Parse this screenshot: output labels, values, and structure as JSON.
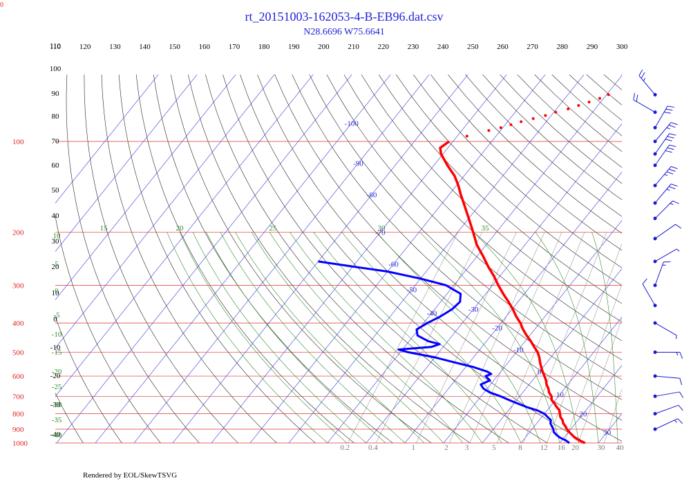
{
  "chart_data": {
    "type": "skew-t log-p diagram",
    "title": "rt_20151003-162053-4-B-EB96.dat.csv",
    "subtitle": "N28.6696 W75.6641",
    "corner_label": "0",
    "footer": "Rendered by EOL/SkewTSVG",
    "pressure_labels": [
      "100",
      "200",
      "300",
      "400",
      "500",
      "600",
      "700",
      "800",
      "900",
      "1000"
    ],
    "pressure_levels": [
      100,
      200,
      300,
      400,
      500,
      600,
      700,
      800,
      900,
      1000
    ],
    "top_axis_labels": [
      "110",
      "120",
      "130",
      "140",
      "150",
      "160",
      "170",
      "180",
      "190",
      "200",
      "210",
      "220",
      "230",
      "240",
      "250",
      "260",
      "270",
      "280",
      "290",
      "300"
    ],
    "isotherm_labels": [
      {
        "p": 87,
        "t": -100
      },
      {
        "p": 118,
        "t": -90
      },
      {
        "p": 150,
        "t": -80
      },
      {
        "p": 200,
        "t": -70
      },
      {
        "p": 255,
        "t": -60
      },
      {
        "p": 310,
        "t": -50
      },
      {
        "p": 370,
        "t": -40
      },
      {
        "p": 360,
        "t": -30
      },
      {
        "p": 415,
        "t": -20
      },
      {
        "p": 490,
        "t": -10
      },
      {
        "p": 580,
        "t": 0
      },
      {
        "p": 690,
        "t": 10
      },
      {
        "p": 800,
        "t": 20
      },
      {
        "p": 920,
        "t": 30
      }
    ],
    "height_labels": [
      {
        "label": "110",
        "y": 70
      },
      {
        "label": "100",
        "y": 103
      },
      {
        "label": "90",
        "y": 139
      },
      {
        "label": "80",
        "y": 172
      },
      {
        "label": "70",
        "y": 208
      },
      {
        "label": "60",
        "y": 243
      },
      {
        "label": "50",
        "y": 279
      },
      {
        "label": "40",
        "y": 316
      },
      {
        "label": "30",
        "y": 353
      },
      {
        "label": "20",
        "y": 390
      },
      {
        "label": "10",
        "y": 428
      },
      {
        "label": "0",
        "y": 466
      },
      {
        "label": "-10",
        "y": 507
      },
      {
        "label": "-20",
        "y": 548
      },
      {
        "label": "-30",
        "y": 590
      },
      {
        "label": "-40",
        "y": 633
      }
    ],
    "moist_adiabat_labels": [
      "15",
      "20",
      "25",
      "30",
      "35"
    ],
    "green_left_labels": [
      "10",
      "5",
      "0",
      "-5",
      "-10",
      "-15",
      "-20",
      "-25",
      "-30",
      "-35",
      "-40"
    ],
    "mixing_ratio_labels": [
      "0.2",
      "0.4",
      "1",
      "2",
      "3",
      "5",
      "8",
      "12",
      "16",
      "20",
      "30",
      "40"
    ],
    "mixing_ratio_values": [
      0.2,
      0.4,
      1,
      2,
      3,
      5,
      8,
      12,
      16,
      20,
      30,
      40
    ],
    "temperature_profile": [
      {
        "p": 1000,
        "t": 26.5
      },
      {
        "p": 980,
        "t": 24.5
      },
      {
        "p": 960,
        "t": 22.8
      },
      {
        "p": 940,
        "t": 21.5
      },
      {
        "p": 920,
        "t": 20.2
      },
      {
        "p": 900,
        "t": 19.0
      },
      {
        "p": 880,
        "t": 18.0
      },
      {
        "p": 860,
        "t": 16.8
      },
      {
        "p": 840,
        "t": 16.0
      },
      {
        "p": 820,
        "t": 14.8
      },
      {
        "p": 800,
        "t": 14.0
      },
      {
        "p": 780,
        "t": 13.2
      },
      {
        "p": 760,
        "t": 11.8
      },
      {
        "p": 740,
        "t": 10.5
      },
      {
        "p": 720,
        "t": 9.0
      },
      {
        "p": 700,
        "t": 8.2
      },
      {
        "p": 680,
        "t": 6.8
      },
      {
        "p": 660,
        "t": 5.8
      },
      {
        "p": 640,
        "t": 4.5
      },
      {
        "p": 620,
        "t": 3.5
      },
      {
        "p": 600,
        "t": 2.2
      },
      {
        "p": 580,
        "t": 0.8
      },
      {
        "p": 560,
        "t": -0.5
      },
      {
        "p": 540,
        "t": -1.8
      },
      {
        "p": 520,
        "t": -3.0
      },
      {
        "p": 500,
        "t": -4.5
      },
      {
        "p": 480,
        "t": -6.5
      },
      {
        "p": 460,
        "t": -8.5
      },
      {
        "p": 440,
        "t": -10.8
      },
      {
        "p": 420,
        "t": -13.0
      },
      {
        "p": 400,
        "t": -15.0
      },
      {
        "p": 380,
        "t": -17.5
      },
      {
        "p": 360,
        "t": -19.8
      },
      {
        "p": 340,
        "t": -22.5
      },
      {
        "p": 320,
        "t": -25.5
      },
      {
        "p": 300,
        "t": -28.5
      },
      {
        "p": 280,
        "t": -31.5
      },
      {
        "p": 260,
        "t": -35.0
      },
      {
        "p": 240,
        "t": -38.5
      },
      {
        "p": 220,
        "t": -42.5
      },
      {
        "p": 200,
        "t": -46.0
      },
      {
        "p": 180,
        "t": -50.0
      },
      {
        "p": 160,
        "t": -54.5
      },
      {
        "p": 150,
        "t": -57.0
      },
      {
        "p": 140,
        "t": -59.5
      },
      {
        "p": 130,
        "t": -62.5
      },
      {
        "p": 120,
        "t": -66.5
      },
      {
        "p": 110,
        "t": -70.5
      },
      {
        "p": 105,
        "t": -72.0
      },
      {
        "p": 100,
        "t": -71.0
      }
    ],
    "temperature_dots": [
      {
        "p": 96,
        "t": -67.5
      },
      {
        "p": 92,
        "t": -63.0
      },
      {
        "p": 90,
        "t": -60.5
      },
      {
        "p": 88,
        "t": -58.5
      },
      {
        "p": 86,
        "t": -56.5
      },
      {
        "p": 84,
        "t": -54.0
      },
      {
        "p": 82,
        "t": -51.5
      },
      {
        "p": 80,
        "t": -49.5
      },
      {
        "p": 78,
        "t": -47.0
      },
      {
        "p": 76,
        "t": -45.0
      },
      {
        "p": 74,
        "t": -43.0
      },
      {
        "p": 72,
        "t": -41.0
      },
      {
        "p": 70,
        "t": -39.5
      }
    ],
    "dewpoint_profile": [
      {
        "p": 1000,
        "t": 22.5
      },
      {
        "p": 980,
        "t": 21.0
      },
      {
        "p": 960,
        "t": 19.0
      },
      {
        "p": 940,
        "t": 17.5
      },
      {
        "p": 920,
        "t": 16.2
      },
      {
        "p": 900,
        "t": 15.5
      },
      {
        "p": 880,
        "t": 14.5
      },
      {
        "p": 860,
        "t": 13.5
      },
      {
        "p": 840,
        "t": 13.0
      },
      {
        "p": 820,
        "t": 11.5
      },
      {
        "p": 800,
        "t": 10.0
      },
      {
        "p": 780,
        "t": 7.5
      },
      {
        "p": 760,
        "t": 4.0
      },
      {
        "p": 740,
        "t": 1.0
      },
      {
        "p": 720,
        "t": -2.0
      },
      {
        "p": 700,
        "t": -5.0
      },
      {
        "p": 680,
        "t": -8.5
      },
      {
        "p": 660,
        "t": -11.0
      },
      {
        "p": 640,
        "t": -12.5
      },
      {
        "p": 620,
        "t": -11.0
      },
      {
        "p": 600,
        "t": -13.0
      },
      {
        "p": 590,
        "t": -12.0
      },
      {
        "p": 580,
        "t": -13.5
      },
      {
        "p": 560,
        "t": -18.0
      },
      {
        "p": 540,
        "t": -24.0
      },
      {
        "p": 520,
        "t": -30.0
      },
      {
        "p": 500,
        "t": -38.0
      },
      {
        "p": 490,
        "t": -41.0
      },
      {
        "p": 480,
        "t": -33.0
      },
      {
        "p": 470,
        "t": -31.5
      },
      {
        "p": 460,
        "t": -35.0
      },
      {
        "p": 440,
        "t": -39.0
      },
      {
        "p": 420,
        "t": -40.5
      },
      {
        "p": 400,
        "t": -39.0
      },
      {
        "p": 380,
        "t": -37.0
      },
      {
        "p": 360,
        "t": -35.5
      },
      {
        "p": 340,
        "t": -35.0
      },
      {
        "p": 320,
        "t": -36.5
      },
      {
        "p": 300,
        "t": -42.0
      },
      {
        "p": 285,
        "t": -50.0
      },
      {
        "p": 270,
        "t": -60.0
      },
      {
        "p": 260,
        "t": -70.0
      },
      {
        "p": 250,
        "t": -80.0
      }
    ],
    "wind_barbs": [
      {
        "p": 70,
        "speed": 25,
        "dir": 140
      },
      {
        "p": 80,
        "speed": 20,
        "dir": 120
      },
      {
        "p": 90,
        "speed": 30,
        "dir": 210
      },
      {
        "p": 100,
        "speed": 25,
        "dir": 220
      },
      {
        "p": 110,
        "speed": 30,
        "dir": 215
      },
      {
        "p": 120,
        "speed": 30,
        "dir": 215
      },
      {
        "p": 140,
        "speed": 35,
        "dir": 220
      },
      {
        "p": 160,
        "speed": 25,
        "dir": 220
      },
      {
        "p": 180,
        "speed": 15,
        "dir": 225
      },
      {
        "p": 210,
        "speed": 10,
        "dir": 235
      },
      {
        "p": 250,
        "speed": 5,
        "dir": 240
      },
      {
        "p": 300,
        "speed": 15,
        "dir": 200
      },
      {
        "p": 350,
        "speed": 10,
        "dir": 150
      },
      {
        "p": 400,
        "speed": 5,
        "dir": 300
      },
      {
        "p": 500,
        "speed": 15,
        "dir": 270
      },
      {
        "p": 600,
        "speed": 10,
        "dir": 275
      },
      {
        "p": 700,
        "speed": 10,
        "dir": 260
      },
      {
        "p": 800,
        "speed": 10,
        "dir": 250
      },
      {
        "p": 900,
        "speed": 15,
        "dir": 245
      }
    ]
  }
}
